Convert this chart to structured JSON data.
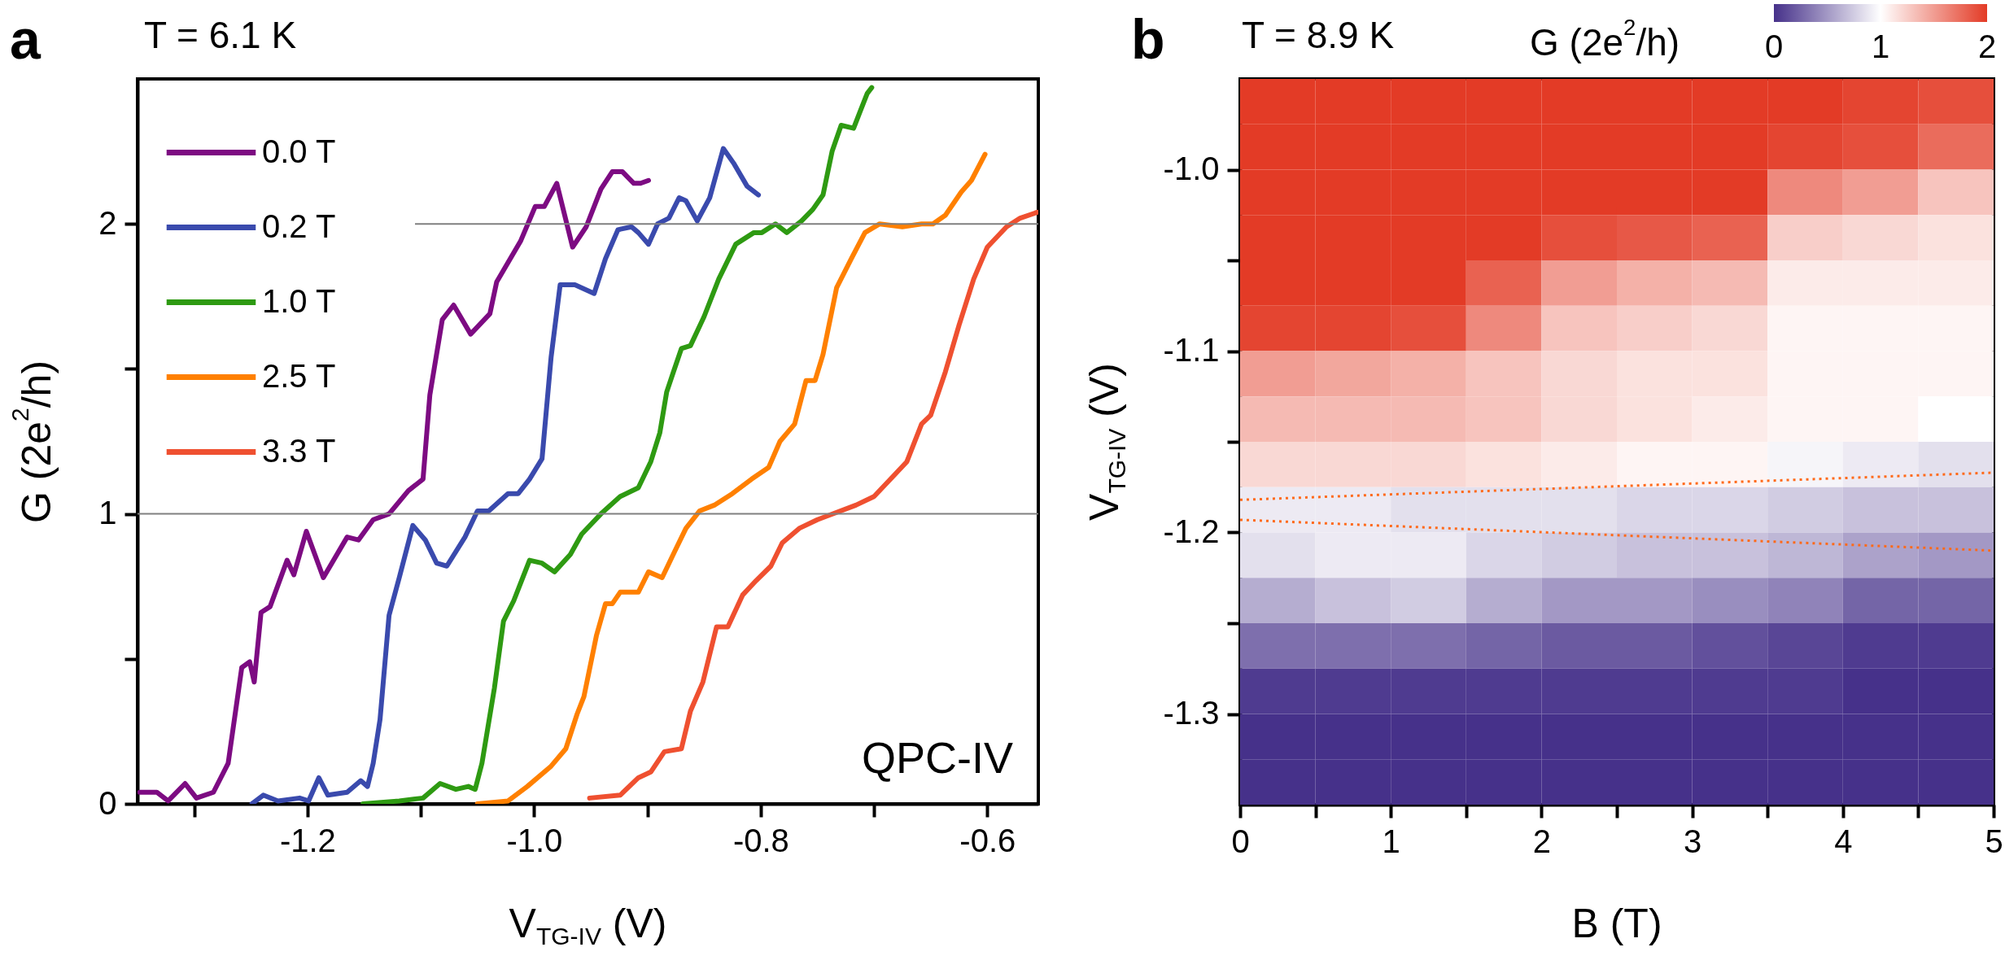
{
  "chart_data": [
    {
      "type": "line",
      "title": "T = 6.1 K",
      "xlabel": "V$_{TG-IV}$ (V)",
      "ylabel": "G (2e$^{2}$/h)",
      "annotations": [
        "a",
        "QPC-IV"
      ],
      "xlim": [
        -1.35,
        -0.555
      ],
      "xticks": [
        {
          "value": -1.3,
          "label": null
        },
        -1.2,
        {
          "value": -1.1,
          "label": null
        },
        {
          "value": -1.0,
          "label": "-1.0"
        },
        {
          "value": -0.9,
          "label": null
        },
        -0.8,
        {
          "value": -0.7,
          "label": null
        },
        -0.6
      ],
      "ylim": [
        0,
        2.5
      ],
      "yticks": [
        0,
        {
          "value": 0.5,
          "label": null
        },
        1,
        {
          "value": 1.5,
          "label": null
        },
        2
      ],
      "ref_lines": [
        {
          "axis": "y",
          "value": 1,
          "color": "#808080"
        },
        {
          "axis": "y",
          "value": 2,
          "color": "#808080"
        }
      ],
      "legend": "top left",
      "series": [
        {
          "name": "0.0 T",
          "color": "#7d0b82",
          "x": [
            -1.348,
            -1.333,
            -1.323,
            -1.308,
            -1.298,
            -1.283,
            -1.27,
            -1.258,
            -1.251,
            -1.247,
            -1.241,
            -1.233,
            -1.218,
            -1.212,
            -1.201,
            -1.186,
            -1.165,
            -1.155,
            -1.142,
            -1.128,
            -1.111,
            -1.098,
            -1.092,
            -1.081,
            -1.071,
            -1.056,
            -1.039,
            -1.033,
            -1.012,
            -0.999,
            -0.991,
            -0.98,
            -0.966,
            -0.954,
            -0.941,
            -0.931,
            -0.922,
            -0.912,
            -0.906,
            -0.899
          ],
          "values": [
            0.04,
            0.04,
            0.01,
            0.07,
            0.02,
            0.04,
            0.14,
            0.47,
            0.49,
            0.42,
            0.66,
            0.68,
            0.84,
            0.79,
            0.94,
            0.78,
            0.92,
            0.91,
            0.98,
            1.0,
            1.08,
            1.12,
            1.41,
            1.67,
            1.72,
            1.62,
            1.69,
            1.8,
            1.94,
            2.06,
            2.06,
            2.14,
            1.92,
            1.99,
            2.12,
            2.18,
            2.18,
            2.14,
            2.14,
            2.15
          ]
        },
        {
          "name": "0.2 T",
          "color": "#3a4aad",
          "x": [
            -1.249,
            -1.239,
            -1.226,
            -1.207,
            -1.199,
            -1.19,
            -1.182,
            -1.165,
            -1.153,
            -1.147,
            -1.142,
            -1.136,
            -1.128,
            -1.119,
            -1.107,
            -1.096,
            -1.086,
            -1.077,
            -1.061,
            -1.05,
            -1.04,
            -1.023,
            -1.014,
            -1.004,
            -0.993,
            -0.985,
            -0.977,
            -0.964,
            -0.947,
            -0.937,
            -0.926,
            -0.914,
            -0.908,
            -0.899,
            -0.891,
            -0.881,
            -0.872,
            -0.866,
            -0.856,
            -0.845,
            -0.833,
            -0.824,
            -0.812,
            -0.802
          ],
          "values": [
            0.0,
            0.03,
            0.01,
            0.02,
            0.01,
            0.09,
            0.03,
            0.04,
            0.08,
            0.06,
            0.14,
            0.29,
            0.65,
            0.78,
            0.96,
            0.91,
            0.83,
            0.82,
            0.92,
            1.01,
            1.01,
            1.07,
            1.07,
            1.12,
            1.19,
            1.54,
            1.79,
            1.79,
            1.76,
            1.88,
            1.98,
            1.99,
            1.97,
            1.93,
            2.0,
            2.02,
            2.09,
            2.08,
            2.01,
            2.09,
            2.26,
            2.21,
            2.13,
            2.1
          ]
        },
        {
          "name": "1.0 T",
          "color": "#2e9a12",
          "x": [
            -1.151,
            -1.119,
            -1.098,
            -1.083,
            -1.069,
            -1.058,
            -1.052,
            -1.046,
            -1.035,
            -1.027,
            -1.018,
            -1.012,
            -1.004,
            -0.993,
            -0.982,
            -0.968,
            -0.958,
            -0.941,
            -0.924,
            -0.908,
            -0.897,
            -0.889,
            -0.883,
            -0.877,
            -0.87,
            -0.862,
            -0.85,
            -0.837,
            -0.822,
            -0.806,
            -0.799,
            -0.787,
            -0.777,
            -0.764,
            -0.754,
            -0.745,
            -0.737,
            -0.729,
            -0.718,
            -0.712,
            -0.706,
            -0.702
          ],
          "values": [
            0.0,
            0.01,
            0.02,
            0.07,
            0.05,
            0.06,
            0.05,
            0.14,
            0.4,
            0.63,
            0.7,
            0.76,
            0.84,
            0.83,
            0.8,
            0.86,
            0.93,
            1.0,
            1.06,
            1.09,
            1.18,
            1.28,
            1.42,
            1.49,
            1.57,
            1.58,
            1.68,
            1.81,
            1.93,
            1.97,
            1.97,
            2.0,
            1.97,
            2.01,
            2.05,
            2.1,
            2.25,
            2.34,
            2.33,
            2.39,
            2.45,
            2.47
          ]
        },
        {
          "name": "2.5 T",
          "color": "#ff8000",
          "x": [
            -1.05,
            -1.023,
            -1.006,
            -0.985,
            -0.972,
            -0.962,
            -0.956,
            -0.945,
            -0.937,
            -0.931,
            -0.924,
            -0.914,
            -0.908,
            -0.899,
            -0.887,
            -0.876,
            -0.866,
            -0.854,
            -0.841,
            -0.825,
            -0.808,
            -0.793,
            -0.783,
            -0.77,
            -0.76,
            -0.752,
            -0.745,
            -0.733,
            -0.72,
            -0.708,
            -0.695,
            -0.675,
            -0.658,
            -0.648,
            -0.637,
            -0.623,
            -0.614,
            -0.602
          ],
          "values": [
            0.0,
            0.01,
            0.06,
            0.13,
            0.19,
            0.31,
            0.37,
            0.58,
            0.69,
            0.69,
            0.73,
            0.73,
            0.73,
            0.8,
            0.78,
            0.87,
            0.95,
            1.01,
            1.03,
            1.07,
            1.12,
            1.16,
            1.25,
            1.31,
            1.46,
            1.46,
            1.55,
            1.78,
            1.88,
            1.97,
            2.0,
            1.99,
            2.0,
            2.0,
            2.03,
            2.11,
            2.15,
            2.24
          ]
        },
        {
          "name": "3.3 T",
          "color": "#ef5030",
          "x": [
            -0.951,
            -0.924,
            -0.908,
            -0.897,
            -0.885,
            -0.87,
            -0.862,
            -0.851,
            -0.839,
            -0.829,
            -0.816,
            -0.804,
            -0.791,
            -0.781,
            -0.766,
            -0.75,
            -0.716,
            -0.7,
            -0.683,
            -0.671,
            -0.658,
            -0.65,
            -0.637,
            -0.625,
            -0.612,
            -0.6,
            -0.583,
            -0.571,
            -0.556
          ],
          "values": [
            0.02,
            0.03,
            0.09,
            0.11,
            0.18,
            0.19,
            0.32,
            0.42,
            0.61,
            0.61,
            0.72,
            0.77,
            0.82,
            0.9,
            0.95,
            0.98,
            1.03,
            1.06,
            1.13,
            1.18,
            1.31,
            1.34,
            1.49,
            1.65,
            1.81,
            1.92,
            1.99,
            2.02,
            2.04
          ]
        }
      ]
    },
    {
      "type": "heatmap",
      "title": "T = 8.9 K",
      "xlabel": "B (T)",
      "ylabel": "V$_{TG-IV}$ (V)",
      "clabel": "G (2e$^{2}$/h)",
      "annotations": [
        "b"
      ],
      "x": [
        0.25,
        0.75,
        1.25,
        1.75,
        2.25,
        2.75,
        3.25,
        3.75,
        4.25,
        4.75
      ],
      "y": [
        -0.9625,
        -0.9875,
        -1.0125,
        -1.0375,
        -1.0625,
        -1.0875,
        -1.1125,
        -1.1375,
        -1.1625,
        -1.1875,
        -1.2125,
        -1.2375,
        -1.2625,
        -1.2875,
        -1.3125,
        -1.3375
      ],
      "cells": [
        [
          2,
          2,
          2,
          2,
          2,
          2,
          2,
          2,
          1.95,
          1.9
        ],
        [
          2,
          2,
          2,
          2,
          2,
          2,
          2,
          1.95,
          1.9,
          1.75
        ],
        [
          2,
          2,
          2,
          2,
          2,
          2,
          2,
          1.6,
          1.5,
          1.3
        ],
        [
          2,
          2,
          2,
          2,
          1.9,
          1.85,
          1.8,
          1.25,
          1.2,
          1.15
        ],
        [
          2,
          2,
          2,
          1.8,
          1.5,
          1.4,
          1.35,
          1.1,
          1.1,
          1.1
        ],
        [
          1.95,
          1.95,
          1.9,
          1.6,
          1.3,
          1.25,
          1.2,
          1.05,
          1.05,
          1.05
        ],
        [
          1.5,
          1.45,
          1.4,
          1.3,
          1.2,
          1.15,
          1.15,
          1.05,
          1.05,
          1.05
        ],
        [
          1.35,
          1.35,
          1.35,
          1.3,
          1.2,
          1.15,
          1.1,
          1.05,
          1.05,
          1.0
        ],
        [
          1.2,
          1.2,
          1.2,
          1.15,
          1.1,
          1.05,
          1.05,
          0.95,
          0.9,
          0.85
        ],
        [
          0.9,
          0.9,
          0.85,
          0.85,
          0.85,
          0.8,
          0.8,
          0.75,
          0.7,
          0.7
        ],
        [
          0.85,
          0.9,
          0.9,
          0.8,
          0.75,
          0.7,
          0.7,
          0.65,
          0.55,
          0.5
        ],
        [
          0.6,
          0.7,
          0.75,
          0.6,
          0.5,
          0.5,
          0.45,
          0.4,
          0.25,
          0.25
        ],
        [
          0.3,
          0.3,
          0.3,
          0.25,
          0.2,
          0.2,
          0.15,
          0.1,
          0.05,
          0.05
        ],
        [
          0.05,
          0.05,
          0.05,
          0.05,
          0.05,
          0.05,
          0.05,
          0.05,
          0,
          0
        ],
        [
          0,
          0,
          0,
          0,
          0,
          0,
          0,
          0,
          0,
          0
        ],
        [
          0,
          0,
          0,
          0,
          0,
          0,
          0,
          0,
          0,
          0
        ]
      ],
      "clim": [
        0,
        2
      ],
      "cticks": [
        0,
        1,
        2
      ],
      "xlim": [
        0,
        5
      ],
      "xticks": [
        0,
        {
          "value": 0.5,
          "label": null
        },
        1,
        {
          "value": 1.5,
          "label": null
        },
        2,
        {
          "value": 2.5,
          "label": null
        },
        3,
        {
          "value": 3.5,
          "label": null
        },
        4,
        {
          "value": 4.5,
          "label": null
        },
        5
      ],
      "ylim": [
        -1.35,
        -0.95
      ],
      "yticks": [
        {
          "value": -1.0,
          "label": "-1.0"
        },
        {
          "value": -1.05,
          "label": null
        },
        -1.1,
        {
          "value": -1.15,
          "label": null
        },
        -1.2,
        {
          "value": -1.25,
          "label": null
        },
        -1.3
      ],
      "series": [
        {
          "type": "line",
          "color": "#ff6a1a",
          "line_style": "dotted",
          "x": [
            0,
            5
          ],
          "values": [
            -1.182,
            -1.167
          ]
        },
        {
          "type": "line",
          "color": "#ff6a1a",
          "line_style": "dotted",
          "x": [
            0,
            5
          ],
          "values": [
            -1.193,
            -1.21
          ]
        }
      ]
    }
  ]
}
